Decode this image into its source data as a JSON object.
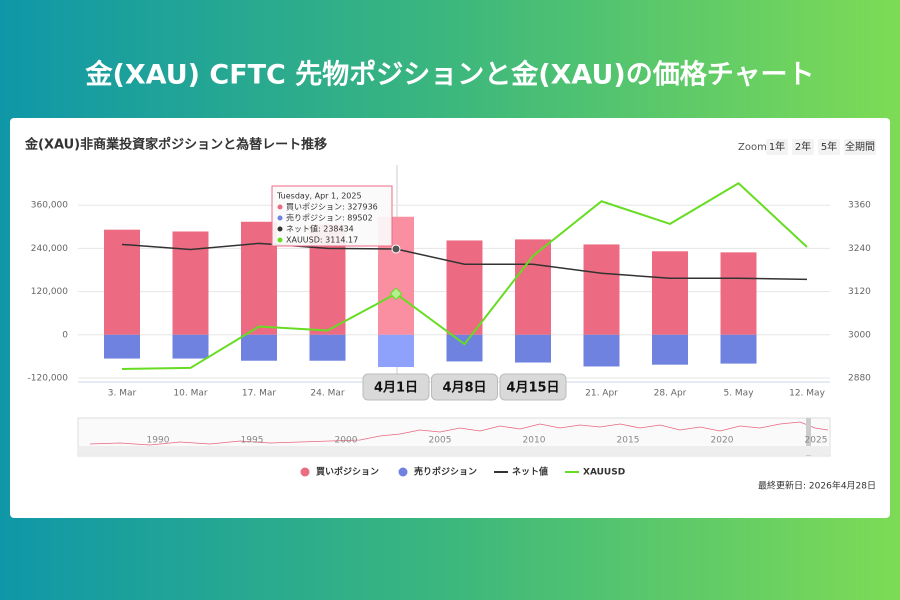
{
  "banner_title": "金(XAU) CFTC 先物ポジションと金(XAU)の価格チャート",
  "chart_data": {
    "type": "bar",
    "title": "金(XAU)非商業投資家ポジションと為替レート推移",
    "zoom": {
      "label": "Zoom",
      "buttons": [
        "1年",
        "2年",
        "5年",
        "全期間"
      ]
    },
    "categories": [
      "3. Mar",
      "10. Mar",
      "17. Mar",
      "24. Mar",
      null,
      null,
      null,
      "21. Apr",
      "28. Apr",
      "5. May",
      "12. May"
    ],
    "series": [
      {
        "name": "買いポジション",
        "type": "bar",
        "color": "#ec6b82",
        "highlight": "#f98fa1",
        "values": [
          292000,
          287000,
          314000,
          306000,
          327936,
          262000,
          265000,
          251000,
          232000,
          229000,
          null
        ]
      },
      {
        "name": "売りポジション",
        "type": "bar",
        "color": "#6f82e0",
        "highlight": "#8fa2fb",
        "values": [
          -66000,
          -66000,
          -72000,
          -72000,
          -89502,
          -74000,
          -77000,
          -88000,
          -83000,
          -80000,
          null
        ]
      },
      {
        "name": "ネット値",
        "type": "line",
        "color": "#333333",
        "values": [
          251000,
          237000,
          254000,
          240000,
          238434,
          196000,
          196000,
          171000,
          157000,
          157000,
          154000
        ]
      },
      {
        "name": "XAUUSD",
        "type": "line",
        "axis": "y2",
        "color": "#66dd22",
        "values": [
          2905,
          2908,
          3023,
          3012,
          3114.17,
          2974,
          3219,
          3371,
          3308,
          3421,
          3244
        ]
      }
    ],
    "ylim": [
      -120000,
      480000
    ],
    "yticks": [
      {
        "value": -120000,
        "label": "-120,000"
      },
      0,
      {
        "value": 120000,
        "label": "120,000"
      },
      {
        "value": 240000,
        "label": "240,000"
      },
      {
        "value": 360000,
        "label": "360,000"
      }
    ],
    "y2lim": [
      2880,
      3480
    ],
    "y2ticks": [
      2880,
      3000,
      3120,
      3240,
      3360
    ],
    "grid": true,
    "highlight_index": 4,
    "annotations": [
      "4月1日",
      "4月8日",
      "4月15日"
    ],
    "tooltip": {
      "title": "Tuesday, Apr 1, 2025",
      "rows": [
        "買いポジション: 327936",
        "売りポジション: 89502",
        "ネット値: 238434",
        "XAUUSD: 3114.17"
      ]
    },
    "navigator_labels": [
      "1990",
      "1995",
      "2000",
      "2005",
      "2010",
      "2015",
      "2020",
      "2025"
    ],
    "legend_position": "bottom",
    "footer": "最終更新日: 2026年4月28日"
  }
}
